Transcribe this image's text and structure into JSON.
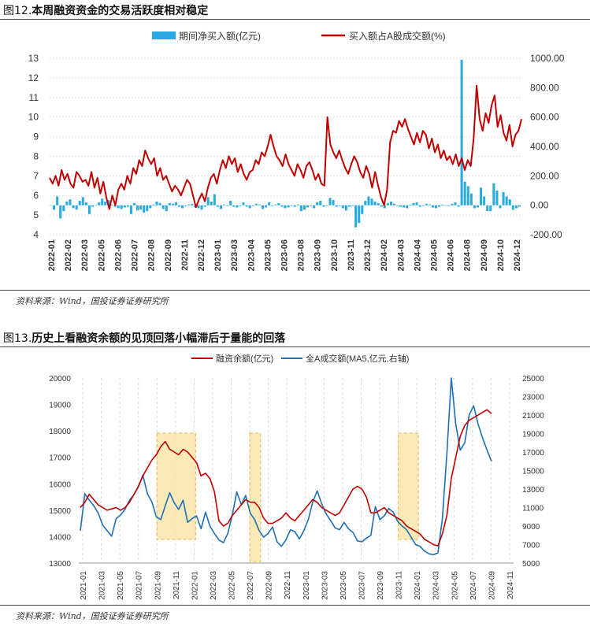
{
  "figure12": {
    "label": "图12.",
    "title": "本周融资资金的交易活跃度相对稳定",
    "source": "资料来源：Wind，国投证券证券研究所",
    "chart_data": {
      "type": "bar+line",
      "left_axis": {
        "min": 4,
        "max": 13,
        "ticks": [
          "4",
          "5",
          "6",
          "7",
          "8",
          "9",
          "10",
          "11",
          "12",
          "13"
        ]
      },
      "right_axis": {
        "min": -200,
        "max": 1000,
        "ticks": [
          "-200.00",
          "0.00",
          "200.00",
          "400.00",
          "600.00",
          "800.00",
          "1000.00"
        ]
      },
      "x_labels": [
        "2022-01",
        "2022-02",
        "2022-03",
        "2022-05",
        "2022-06",
        "2022-07",
        "2022-08",
        "2022-09",
        "2022-11",
        "2022-12",
        "2023-01",
        "2023-03",
        "2023-04",
        "2023-05",
        "2023-06",
        "2023-08",
        "2023-09",
        "2023-10",
        "2023-11",
        "2023-12",
        "2024-02",
        "2024-03",
        "2024-04",
        "2024-05",
        "2024-06",
        "2024-08",
        "2024-09",
        "2024-10",
        "2024-12"
      ],
      "series": [
        {
          "name": "期间净买入额(亿元)",
          "type": "bar",
          "axis": "right",
          "color": "#29ABE2",
          "values": [
            0,
            -30,
            60,
            -90,
            -40,
            25,
            40,
            -20,
            -30,
            30,
            55,
            20,
            -60,
            -10,
            0,
            20,
            45,
            25,
            35,
            5,
            -10,
            -20,
            -25,
            -15,
            -10,
            -60,
            15,
            -35,
            -30,
            -50,
            -40,
            -20,
            5,
            25,
            15,
            -25,
            -40,
            15,
            10,
            20,
            -10,
            -20,
            -5,
            5,
            10,
            -15,
            -20,
            -30,
            -10,
            55,
            25,
            75,
            -10,
            -25,
            5,
            -5,
            30,
            -10,
            -15,
            -5,
            20,
            -10,
            -20,
            -5,
            10,
            5,
            -25,
            -15,
            20,
            -5,
            5,
            15,
            -10,
            -20,
            -15,
            -5,
            -10,
            5,
            -40,
            -30,
            -15,
            -5,
            -20,
            20,
            30,
            -10,
            -5,
            50,
            35,
            -10,
            -5,
            -20,
            -35,
            -10,
            -5,
            -150,
            -120,
            -60,
            30,
            60,
            45,
            25,
            15,
            -10,
            -20,
            15,
            25,
            10,
            -5,
            -10,
            -15,
            -20,
            5,
            15,
            20,
            -10,
            -5,
            10,
            5,
            -15,
            -20,
            -10,
            5,
            0,
            -5,
            10,
            20,
            -10,
            990,
            160,
            130,
            80,
            -20,
            -15,
            120,
            60,
            -40,
            -40,
            150,
            100,
            -20,
            90,
            60,
            40,
            -30,
            -20,
            -10
          ]
        },
        {
          "name": "买入额占A股成交额(%)",
          "type": "line",
          "axis": "left",
          "color": "#C00000",
          "values": [
            6.9,
            6.6,
            7.0,
            6.5,
            7.3,
            6.8,
            7.1,
            6.6,
            6.4,
            7.2,
            7.0,
            6.7,
            6.8,
            6.5,
            7.2,
            6.4,
            6.9,
            6.1,
            6.7,
            5.9,
            5.3,
            6.0,
            5.5,
            6.3,
            6.6,
            6.3,
            7.0,
            6.6,
            7.4,
            7.1,
            7.8,
            7.5,
            8.3,
            7.9,
            7.6,
            7.9,
            7.0,
            7.4,
            6.8,
            7.0,
            6.6,
            6.2,
            6.5,
            6.3,
            6.0,
            6.4,
            6.8,
            6.6,
            6.0,
            5.4,
            5.8,
            6.1,
            5.7,
            6.4,
            6.9,
            7.1,
            6.6,
            7.3,
            7.8,
            7.4,
            8.0,
            7.6,
            7.9,
            7.2,
            7.6,
            7.1,
            6.8,
            7.2,
            7.3,
            7.8,
            7.6,
            8.2,
            8.0,
            8.5,
            9.1,
            8.5,
            8.0,
            7.8,
            7.5,
            8.1,
            7.6,
            7.3,
            7.0,
            7.6,
            7.3,
            6.9,
            7.5,
            7.7,
            7.3,
            6.8,
            7.1,
            6.6,
            6.5,
            10.0,
            8.6,
            8.2,
            7.9,
            8.3,
            7.8,
            7.4,
            7.1,
            7.6,
            8.0,
            7.7,
            7.2,
            6.9,
            7.5,
            7.1,
            6.4,
            7.2,
            6.5,
            5.9,
            5.5,
            6.3,
            8.7,
            9.3,
            9.2,
            9.8,
            9.5,
            9.9,
            9.4,
            9.0,
            8.6,
            9.2,
            8.7,
            9.3,
            9.1,
            8.4,
            8.9,
            8.2,
            8.6,
            7.9,
            8.3,
            7.8,
            8.0,
            7.6,
            8.1,
            7.5,
            7.9,
            7.3,
            7.8,
            7.5,
            8.9,
            11.6,
            9.9,
            9.3,
            10.2,
            9.7,
            10.6,
            11.1,
            9.5,
            10.1,
            9.2,
            8.8,
            9.6,
            8.5,
            9.1,
            9.3,
            9.9
          ]
        }
      ]
    }
  },
  "figure13": {
    "label": "图13.",
    "title": "历史上看融资余额的见顶回落小幅滞后于量能的回落",
    "source": "资料来源：Wind，国投证券证券研究所",
    "chart_data": {
      "type": "line",
      "left_axis": {
        "min": 13000,
        "max": 20000,
        "ticks": [
          "13000",
          "14000",
          "15000",
          "16000",
          "17000",
          "18000",
          "19000",
          "20000"
        ]
      },
      "right_axis": {
        "min": 5000,
        "max": 25000,
        "ticks": [
          "5000",
          "7000",
          "9000",
          "11000",
          "13000",
          "15000",
          "17000",
          "19000",
          "21000",
          "23000",
          "25000"
        ]
      },
      "x_labels": [
        "2021-01",
        "2021-03",
        "2021-05",
        "2021-07",
        "2021-09",
        "2021-11",
        "2022-01",
        "2022-03",
        "2022-05",
        "2022-07",
        "2022-09",
        "2022-11",
        "2023-01",
        "2023-03",
        "2023-05",
        "2023-07",
        "2023-09",
        "2023-11",
        "2024-01",
        "2024-03",
        "2024-05",
        "2024-07",
        "2024-09",
        "2024-11"
      ],
      "highlight_periods": [
        [
          "2021-09",
          "2022-01"
        ],
        [
          "2022-07",
          "2022-08"
        ],
        [
          "2023-11",
          "2024-01"
        ]
      ],
      "series": [
        {
          "name": "融资余额(亿元)",
          "axis": "left",
          "color": "#C00000",
          "values": [
            15100,
            15300,
            15600,
            15400,
            15200,
            15100,
            15000,
            15050,
            15100,
            15000,
            15100,
            15300,
            15600,
            15900,
            16300,
            16600,
            16900,
            17100,
            17400,
            17600,
            17300,
            17200,
            17100,
            17300,
            17200,
            17000,
            16800,
            16300,
            16400,
            16200,
            15700,
            14600,
            14400,
            14500,
            14800,
            15000,
            15200,
            15400,
            15300,
            15300,
            15100,
            14700,
            14500,
            14500,
            14600,
            14700,
            14900,
            14700,
            14600,
            14800,
            15000,
            15200,
            15400,
            15300,
            15100,
            15000,
            14900,
            14800,
            14900,
            15200,
            15500,
            15800,
            15900,
            15800,
            15500,
            14900,
            14900,
            15000,
            15100,
            14900,
            14800,
            14700,
            14600,
            14400,
            14300,
            14200,
            14100,
            13900,
            13800,
            13700,
            13650,
            14100,
            14800,
            16200,
            17000,
            17800,
            18200,
            18400,
            18500,
            18600,
            18700,
            18800,
            18650
          ]
        },
        {
          "name": "全A成交额(MA5,亿元,右轴)",
          "axis": "right",
          "color": "#1F6FB5",
          "values": [
            8500,
            12500,
            11800,
            11200,
            10400,
            9100,
            8500,
            7900,
            9800,
            10200,
            10800,
            11800,
            12400,
            13300,
            14500,
            12500,
            11600,
            10000,
            9700,
            11200,
            12600,
            11500,
            10800,
            11800,
            9400,
            9800,
            10100,
            8700,
            10500,
            9000,
            8200,
            7500,
            7200,
            8200,
            10200,
            12700,
            11300,
            12300,
            10400,
            9700,
            8500,
            7800,
            8200,
            8900,
            7300,
            6800,
            7500,
            8600,
            8400,
            7600,
            8500,
            9700,
            11600,
            12800,
            11400,
            10300,
            9600,
            8800,
            8600,
            9400,
            8700,
            8300,
            7400,
            7300,
            7700,
            8000,
            11100,
            9700,
            10100,
            10900,
            10500,
            9500,
            9000,
            8600,
            7800,
            7000,
            6800,
            6300,
            6000,
            5900,
            6100,
            9800,
            16800,
            25000,
            20000,
            17200,
            18000,
            21000,
            22000,
            20000,
            18500,
            17200,
            16000
          ]
        }
      ]
    }
  }
}
